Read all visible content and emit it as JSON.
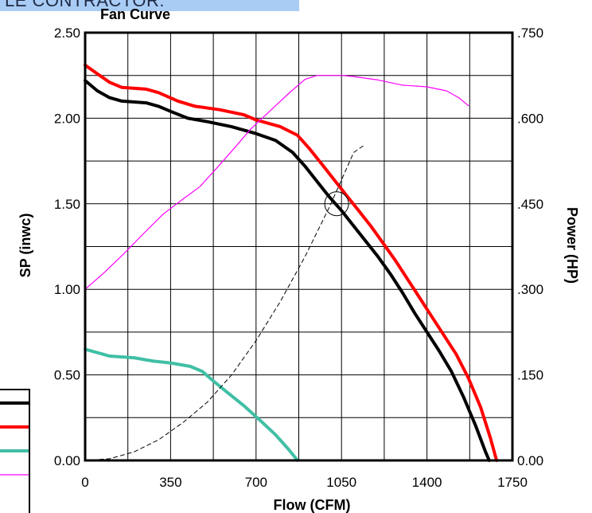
{
  "banner": {
    "text": "LE CONTRACTOR:"
  },
  "colors": {
    "banner_bg": "#a9ccf5",
    "black": "#000000",
    "red": "#ff0000",
    "teal": "#40bfa5",
    "magenta": "#ff00ff",
    "grid": "#000000"
  },
  "legend": {
    "entries": [
      {
        "name": "",
        "color": "#000000",
        "style": "thick"
      },
      {
        "name": "",
        "color": "#ff0000",
        "style": "thick"
      },
      {
        "name": "",
        "color": "#40bfa5",
        "style": "thick"
      },
      {
        "name": "",
        "color": "#ff00ff",
        "style": "thin"
      }
    ]
  },
  "chart_data": {
    "type": "line",
    "title": "Fan Curve",
    "xlabel": "Flow (CFM)",
    "ylabel": "SP (inwc)",
    "y2label": "Power (HP)",
    "xlim": [
      0,
      1750
    ],
    "ylim": [
      0,
      2.5
    ],
    "y2lim": [
      0,
      0.75
    ],
    "grid": true,
    "x_ticks": [
      "0",
      "350",
      "700",
      "1050",
      "1400",
      "1750"
    ],
    "y_ticks": [
      "0.00",
      "0.50",
      "1.00",
      "1.50",
      "2.00",
      "2.50"
    ],
    "y2_ticks": [
      "0.00",
      ".150",
      ".300",
      ".450",
      ".600",
      ".750"
    ],
    "series": [
      {
        "color": "#000000",
        "style": "thick",
        "axis": "left",
        "points": [
          [
            0,
            2.22
          ],
          [
            50,
            2.16
          ],
          [
            100,
            2.12
          ],
          [
            150,
            2.1
          ],
          [
            250,
            2.09
          ],
          [
            300,
            2.07
          ],
          [
            350,
            2.04
          ],
          [
            420,
            2.0
          ],
          [
            500,
            1.98
          ],
          [
            600,
            1.95
          ],
          [
            700,
            1.91
          ],
          [
            780,
            1.87
          ],
          [
            850,
            1.8
          ],
          [
            900,
            1.72
          ],
          [
            950,
            1.63
          ],
          [
            1000,
            1.54
          ],
          [
            1050,
            1.46
          ],
          [
            1100,
            1.37
          ],
          [
            1150,
            1.28
          ],
          [
            1200,
            1.19
          ],
          [
            1250,
            1.09
          ],
          [
            1300,
            0.98
          ],
          [
            1350,
            0.86
          ],
          [
            1400,
            0.75
          ],
          [
            1450,
            0.64
          ],
          [
            1500,
            0.52
          ],
          [
            1550,
            0.37
          ],
          [
            1600,
            0.2
          ],
          [
            1640,
            0.05
          ],
          [
            1655,
            0.0
          ]
        ]
      },
      {
        "color": "#ff0000",
        "style": "thick",
        "axis": "left",
        "points": [
          [
            0,
            2.31
          ],
          [
            50,
            2.26
          ],
          [
            100,
            2.21
          ],
          [
            150,
            2.18
          ],
          [
            250,
            2.17
          ],
          [
            300,
            2.15
          ],
          [
            380,
            2.1
          ],
          [
            450,
            2.07
          ],
          [
            550,
            2.05
          ],
          [
            650,
            2.02
          ],
          [
            700,
            1.99
          ],
          [
            800,
            1.95
          ],
          [
            870,
            1.9
          ],
          [
            920,
            1.82
          ],
          [
            970,
            1.73
          ],
          [
            1020,
            1.64
          ],
          [
            1070,
            1.55
          ],
          [
            1120,
            1.46
          ],
          [
            1170,
            1.37
          ],
          [
            1220,
            1.27
          ],
          [
            1270,
            1.17
          ],
          [
            1320,
            1.06
          ],
          [
            1370,
            0.95
          ],
          [
            1420,
            0.84
          ],
          [
            1470,
            0.73
          ],
          [
            1520,
            0.62
          ],
          [
            1570,
            0.48
          ],
          [
            1620,
            0.31
          ],
          [
            1660,
            0.13
          ],
          [
            1685,
            0.0
          ]
        ]
      },
      {
        "color": "#40bfa5",
        "style": "thick",
        "axis": "left",
        "points": [
          [
            0,
            0.65
          ],
          [
            50,
            0.63
          ],
          [
            100,
            0.61
          ],
          [
            200,
            0.6
          ],
          [
            280,
            0.58
          ],
          [
            350,
            0.57
          ],
          [
            430,
            0.55
          ],
          [
            480,
            0.52
          ],
          [
            520,
            0.47
          ],
          [
            580,
            0.4
          ],
          [
            650,
            0.32
          ],
          [
            720,
            0.23
          ],
          [
            780,
            0.15
          ],
          [
            830,
            0.07
          ],
          [
            870,
            0.0
          ]
        ]
      },
      {
        "color": "#ff00ff",
        "style": "thin",
        "axis": "right",
        "points": [
          [
            0,
            0.3
          ],
          [
            80,
            0.33
          ],
          [
            160,
            0.363
          ],
          [
            240,
            0.398
          ],
          [
            320,
            0.432
          ],
          [
            400,
            0.458
          ],
          [
            470,
            0.48
          ],
          [
            540,
            0.513
          ],
          [
            610,
            0.547
          ],
          [
            680,
            0.582
          ],
          [
            760,
            0.614
          ],
          [
            840,
            0.646
          ],
          [
            900,
            0.668
          ],
          [
            950,
            0.675
          ],
          [
            1000,
            0.675
          ],
          [
            1050,
            0.675
          ],
          [
            1100,
            0.673
          ],
          [
            1200,
            0.667
          ],
          [
            1300,
            0.658
          ],
          [
            1400,
            0.655
          ],
          [
            1480,
            0.648
          ],
          [
            1530,
            0.636
          ],
          [
            1570,
            0.622
          ]
        ]
      },
      {
        "color": "#000000",
        "style": "dashed",
        "axis": "left",
        "points": [
          [
            0,
            0.0
          ],
          [
            100,
            0.01
          ],
          [
            200,
            0.05
          ],
          [
            300,
            0.12
          ],
          [
            400,
            0.22
          ],
          [
            500,
            0.34
          ],
          [
            600,
            0.5
          ],
          [
            700,
            0.7
          ],
          [
            800,
            0.93
          ],
          [
            900,
            1.19
          ],
          [
            1000,
            1.48
          ],
          [
            1100,
            1.8
          ],
          [
            1140,
            1.84
          ]
        ]
      }
    ],
    "operating_point": {
      "x": 1030,
      "y": 1.5
    }
  }
}
